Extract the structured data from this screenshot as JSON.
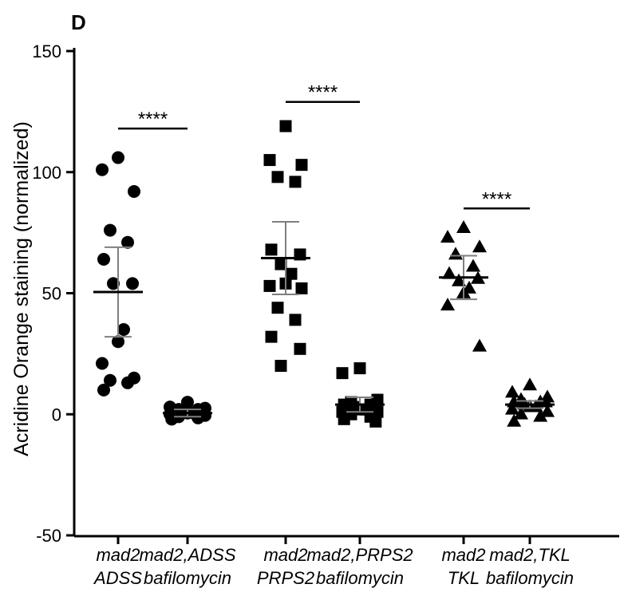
{
  "chart_data": {
    "type": "scatter",
    "panel_label": "D",
    "ylabel": "Acridine Orange staining (normalized)",
    "ylim": [
      -50,
      150
    ],
    "yticks": [
      -50,
      0,
      50,
      100,
      150
    ],
    "grid": false,
    "legend": "none",
    "groups": [
      {
        "label_lines": [
          "mad2",
          "ADSS"
        ],
        "marker": "circle",
        "values": [
          106,
          101,
          92,
          76,
          71,
          64,
          54,
          54,
          35,
          30,
          21,
          15,
          13,
          14,
          10
        ],
        "mean": 50.5,
        "sd_low": 32,
        "sd_high": 69
      },
      {
        "label_lines": [
          "mad2,ADSS",
          "bafilomycin"
        ],
        "marker": "circle",
        "values": [
          5,
          3,
          2.5,
          2,
          2,
          1.5,
          1,
          0.5,
          0,
          -0.5,
          -1,
          -1.5,
          -2,
          1,
          0.5
        ],
        "mean": 0.5,
        "sd_low": -1,
        "sd_high": 2
      },
      {
        "label_lines": [
          "mad2",
          "PRPS2"
        ],
        "marker": "square",
        "values": [
          119,
          105,
          103,
          98,
          96,
          68,
          66,
          62,
          58,
          54,
          53,
          52,
          44,
          39,
          32,
          27,
          20
        ],
        "mean": 64.5,
        "sd_low": 49.5,
        "sd_high": 79.5
      },
      {
        "label_lines": [
          "mad2,PRPS2",
          "bafilomycin"
        ],
        "marker": "square",
        "values": [
          19,
          17,
          6,
          5,
          4,
          3,
          3,
          2,
          2,
          1,
          0,
          -1,
          -2,
          -3,
          1,
          4
        ],
        "mean": 4,
        "sd_low": 1,
        "sd_high": 7
      },
      {
        "label_lines": [
          "mad2",
          "TKL"
        ],
        "marker": "triangle",
        "values": [
          77,
          73,
          69,
          66,
          61,
          58,
          56,
          55,
          52,
          50,
          45,
          28
        ],
        "mean": 56.5,
        "sd_low": 47.5,
        "sd_high": 65.5
      },
      {
        "label_lines": [
          "mad2,TKL",
          "bafilomycin"
        ],
        "marker": "triangle",
        "values": [
          12,
          9,
          7,
          6,
          5,
          5,
          4,
          3,
          2,
          1,
          0,
          -1,
          -3,
          3,
          5
        ],
        "mean": 4,
        "sd_low": 2.5,
        "sd_high": 5.5
      }
    ],
    "annotations": [
      {
        "text": "****",
        "between_groups": [
          0,
          1
        ],
        "y": 118
      },
      {
        "text": "****",
        "between_groups": [
          2,
          3
        ],
        "y": 129
      },
      {
        "text": "****",
        "between_groups": [
          4,
          5
        ],
        "y": 85
      }
    ],
    "colors": {
      "marker": "#000000",
      "mean_line": "#000000",
      "sd_bar": "#7f7f7f"
    }
  }
}
